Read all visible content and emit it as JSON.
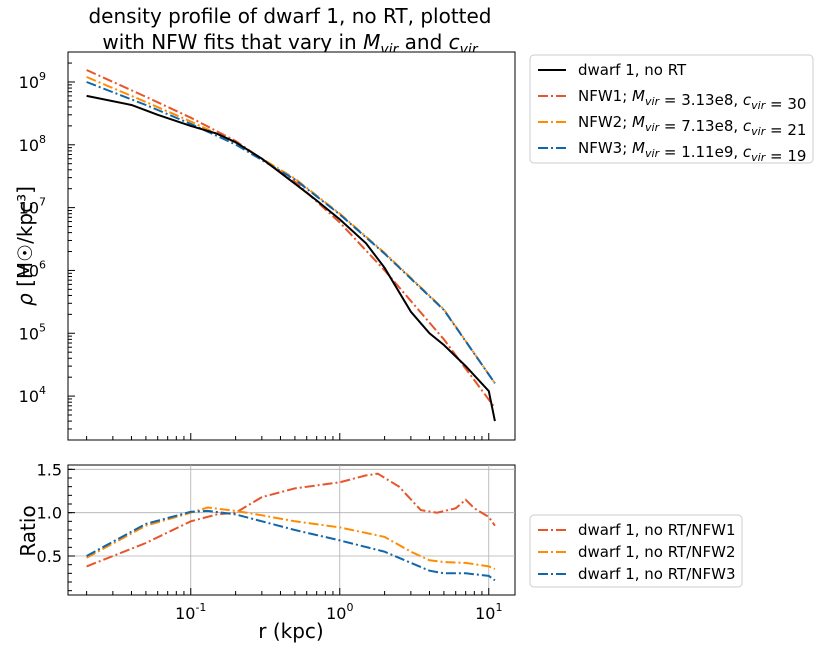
{
  "chart_data": [
    {
      "type": "line",
      "title_line1": "density profile of dwarf 1, no RT, plotted",
      "title_line2": "with NFW fits that vary in M_vir and c_vir",
      "xscale": "log",
      "yscale": "log",
      "xlim": [
        0.015,
        15
      ],
      "ylim": [
        2000,
        3000000000
      ],
      "ylabel": "ρ [M☉/kpc³]",
      "yticks": [
        {
          "value": 10000,
          "label": "10^4"
        },
        {
          "value": 100000,
          "label": "10^5"
        },
        {
          "value": 1000000,
          "label": "10^6"
        },
        {
          "value": 10000000,
          "label": "10^7"
        },
        {
          "value": 100000000,
          "label": "10^8"
        },
        {
          "value": 1000000000,
          "label": "10^9"
        }
      ],
      "legend_position": "outside-right-top",
      "series": [
        {
          "name": "dwarf 1, no RT",
          "color": "#000000",
          "style": "solid",
          "x": [
            0.02,
            0.04,
            0.06,
            0.1,
            0.15,
            0.2,
            0.3,
            0.5,
            0.7,
            1.0,
            1.5,
            2.0,
            3.0,
            4.0,
            5.0,
            7.0,
            10.0,
            11.0
          ],
          "y": [
            600000000,
            430000000,
            300000000,
            200000000,
            150000000,
            110000000,
            60000000,
            24000000,
            13000000,
            6500000,
            2700000,
            1100000,
            220000,
            100000,
            65000,
            30000,
            12000,
            4000
          ]
        },
        {
          "name": "NFW1; M_vir = 3.13e8, c_vir = 30",
          "color": "#e8552a",
          "style": "dashdot",
          "x": [
            0.02,
            0.05,
            0.1,
            0.2,
            0.5,
            1.0,
            2.0,
            5.0,
            11.0
          ],
          "y": [
            1550000000,
            580000000,
            270000000,
            115000000,
            26000000,
            5800000,
            1000000,
            80000,
            6500
          ]
        },
        {
          "name": "NFW2; M_vir = 7.13e8, c_vir = 21",
          "color": "#ff8c00",
          "style": "dashdot",
          "x": [
            0.02,
            0.05,
            0.1,
            0.2,
            0.5,
            1.0,
            2.0,
            5.0,
            11.0
          ],
          "y": [
            1200000000,
            480000000,
            235000000,
            108000000,
            29000000,
            8000000,
            1900000,
            240000,
            16000
          ]
        },
        {
          "name": "NFW3; M_vir = 1.11e9, c_vir = 19",
          "color": "#1266aa",
          "style": "dashdot",
          "x": [
            0.02,
            0.05,
            0.1,
            0.2,
            0.5,
            1.0,
            2.0,
            5.0,
            11.0
          ],
          "y": [
            1000000000,
            430000000,
            215000000,
            101000000,
            28000000,
            7800000,
            1850000,
            235000,
            16000
          ]
        }
      ]
    },
    {
      "type": "line",
      "xscale": "log",
      "xlim": [
        0.015,
        15
      ],
      "ylim": [
        0.05,
        1.55
      ],
      "xlabel": "r (kpc)",
      "ylabel": "Ratio",
      "xticks": [
        {
          "value": 0.1,
          "label": "10^-1"
        },
        {
          "value": 1,
          "label": "10^0"
        },
        {
          "value": 10,
          "label": "10^1"
        }
      ],
      "yticks": [
        {
          "value": 0.5,
          "label": "0.5"
        },
        {
          "value": 1.0,
          "label": "1.0"
        },
        {
          "value": 1.5,
          "label": "1.5"
        }
      ],
      "grid": true,
      "legend_position": "outside-right-bottom",
      "series": [
        {
          "name": "dwarf 1, no RT/NFW1",
          "color": "#e8552a",
          "style": "dashdot",
          "x": [
            0.02,
            0.05,
            0.1,
            0.15,
            0.2,
            0.3,
            0.5,
            1.0,
            1.5,
            1.8,
            2.5,
            3.5,
            4.5,
            6.0,
            7.0,
            8.0,
            10.0,
            11.0
          ],
          "y": [
            0.38,
            0.65,
            0.9,
            0.98,
            1.0,
            1.18,
            1.28,
            1.35,
            1.43,
            1.45,
            1.3,
            1.03,
            1.0,
            1.05,
            1.15,
            1.05,
            0.95,
            0.85
          ]
        },
        {
          "name": "dwarf 1, no RT/NFW2",
          "color": "#ff8c00",
          "style": "dashdot",
          "x": [
            0.02,
            0.05,
            0.1,
            0.13,
            0.2,
            0.3,
            0.5,
            1.0,
            2.0,
            3.0,
            4.0,
            5.0,
            7.0,
            10.0,
            11.0
          ],
          "y": [
            0.48,
            0.85,
            1.0,
            1.06,
            1.02,
            0.97,
            0.9,
            0.83,
            0.72,
            0.55,
            0.45,
            0.43,
            0.42,
            0.38,
            0.35
          ]
        },
        {
          "name": "dwarf 1, no RT/NFW3",
          "color": "#1266aa",
          "style": "dashdot",
          "x": [
            0.02,
            0.05,
            0.1,
            0.13,
            0.2,
            0.3,
            0.5,
            1.0,
            2.0,
            3.0,
            4.0,
            5.0,
            7.0,
            10.0,
            11.0
          ],
          "y": [
            0.5,
            0.87,
            1.01,
            1.02,
            0.98,
            0.9,
            0.8,
            0.68,
            0.55,
            0.42,
            0.33,
            0.3,
            0.3,
            0.27,
            0.22
          ]
        }
      ]
    }
  ]
}
